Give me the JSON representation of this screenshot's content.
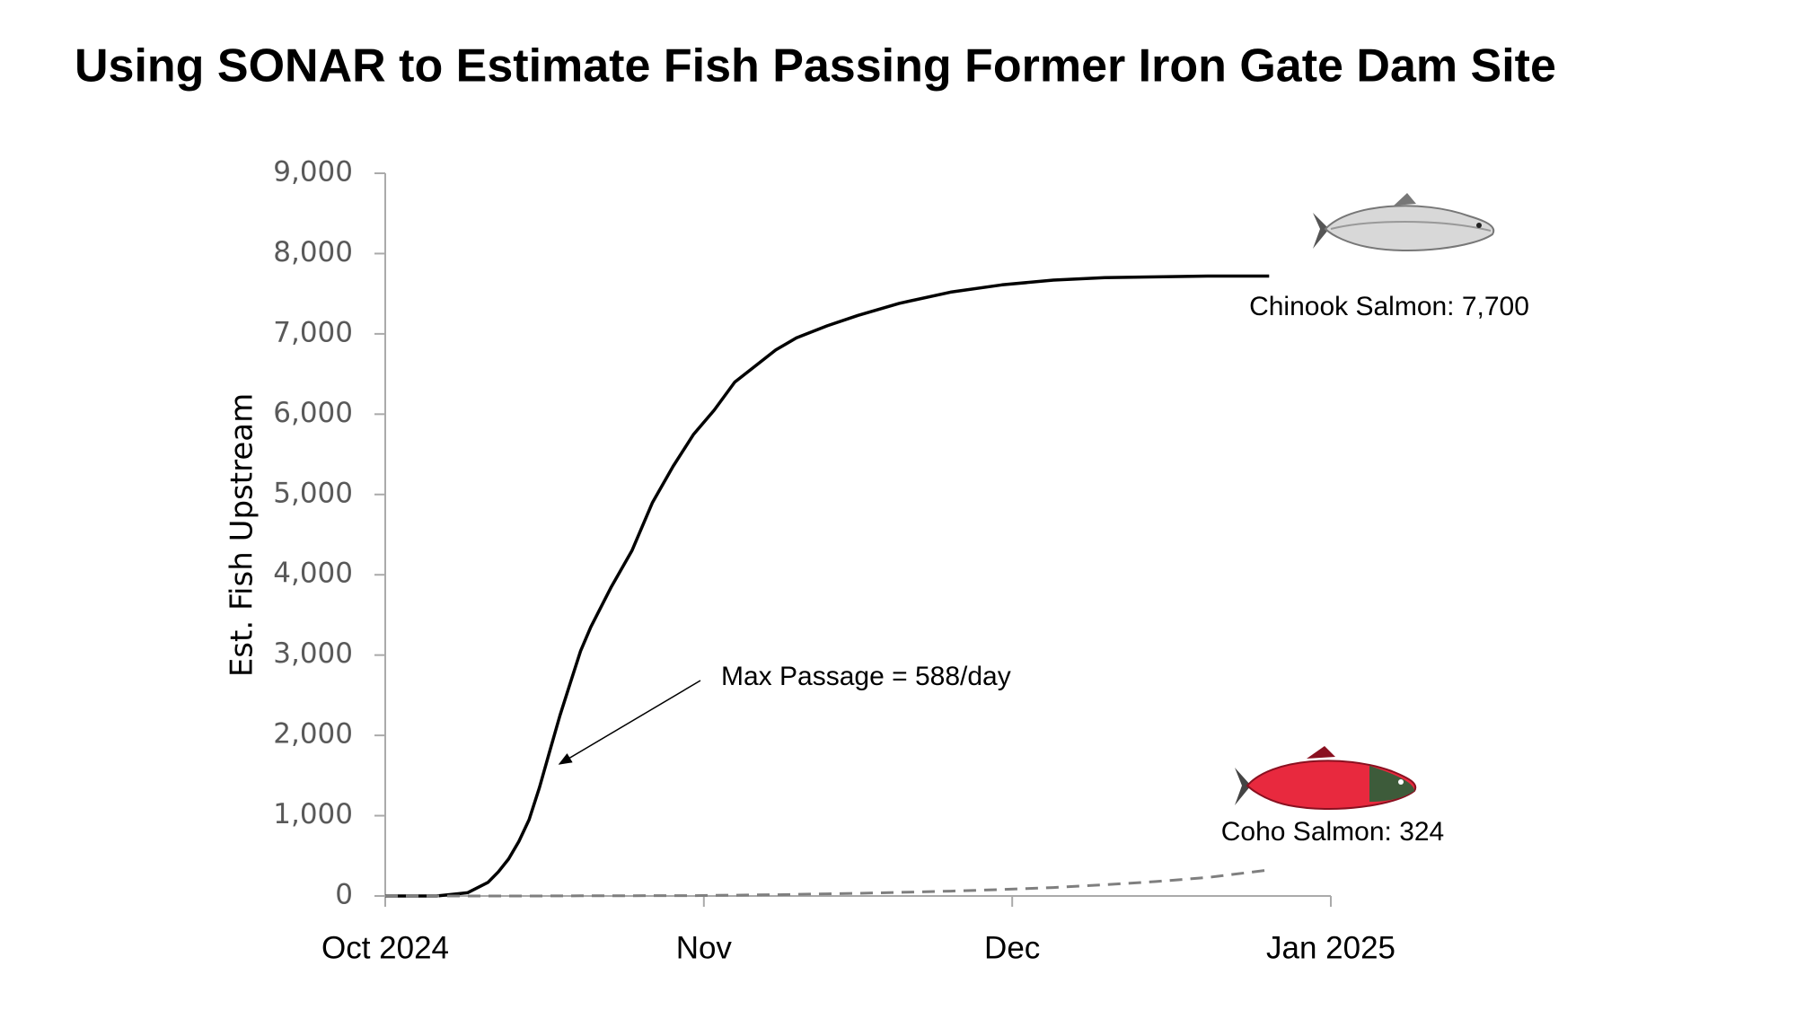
{
  "chart_data": {
    "type": "line",
    "title": "Using SONAR to Estimate Fish Passing Former Iron Gate Dam Site",
    "y_label": "Est. Fish Upstream",
    "x": [
      0,
      5,
      8,
      10,
      11,
      12,
      13,
      14,
      15,
      16,
      17,
      18,
      19,
      20,
      22,
      24,
      26,
      28,
      30,
      32,
      34,
      36,
      38,
      40,
      43,
      46,
      50,
      55,
      60,
      65,
      70,
      75,
      80,
      86
    ],
    "series": [
      {
        "label": "Chinook Salmon: 7,700",
        "color": "#000000",
        "dashed": false,
        "values": [
          0,
          0,
          40,
          170,
          300,
          460,
          680,
          950,
          1350,
          1800,
          2250,
          2650,
          3050,
          3350,
          3850,
          4300,
          4900,
          5350,
          5750,
          6050,
          6400,
          6600,
          6800,
          6950,
          7100,
          7230,
          7380,
          7520,
          7610,
          7670,
          7700,
          7710,
          7720,
          7720
        ]
      },
      {
        "label": "Coho Salmon: 324",
        "color": "#7f7f7f",
        "dashed": true,
        "values": [
          0,
          0,
          0,
          0,
          0,
          0,
          0,
          0,
          0,
          1,
          1,
          1,
          2,
          2,
          3,
          3,
          4,
          5,
          5,
          8,
          10,
          13,
          16,
          20,
          27,
          34,
          45,
          60,
          80,
          105,
          140,
          180,
          230,
          324
        ]
      }
    ],
    "annotations": [
      {
        "text": "Max Passage = 588/day"
      }
    ],
    "xlim": [
      0,
      92
    ],
    "xticks": [
      {
        "value": 0,
        "label": "Oct 2024"
      },
      {
        "value": 31,
        "label": "Nov"
      },
      {
        "value": 61,
        "label": "Dec"
      },
      {
        "value": 92,
        "label": "Jan 2025"
      }
    ],
    "ylim": [
      0,
      9000
    ],
    "yticks": [
      0,
      {
        "value": 1000,
        "label": "1,000"
      },
      {
        "value": 2000,
        "label": "2,000"
      },
      {
        "value": 3000,
        "label": "3,000"
      },
      {
        "value": 4000,
        "label": "4,000"
      },
      {
        "value": 5000,
        "label": "5,000"
      },
      {
        "value": 6000,
        "label": "6,000"
      },
      {
        "value": 7000,
        "label": "7,000"
      },
      {
        "value": 8000,
        "label": "8,000"
      },
      {
        "value": 9000,
        "label": "9,000"
      }
    ],
    "grid": false
  }
}
